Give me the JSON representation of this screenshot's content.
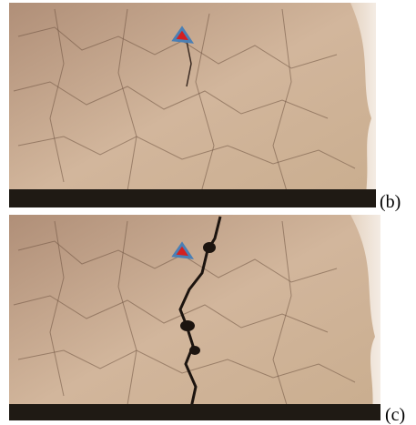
{
  "panels": [
    {
      "label": "(b)"
    },
    {
      "label": "(c)"
    }
  ]
}
